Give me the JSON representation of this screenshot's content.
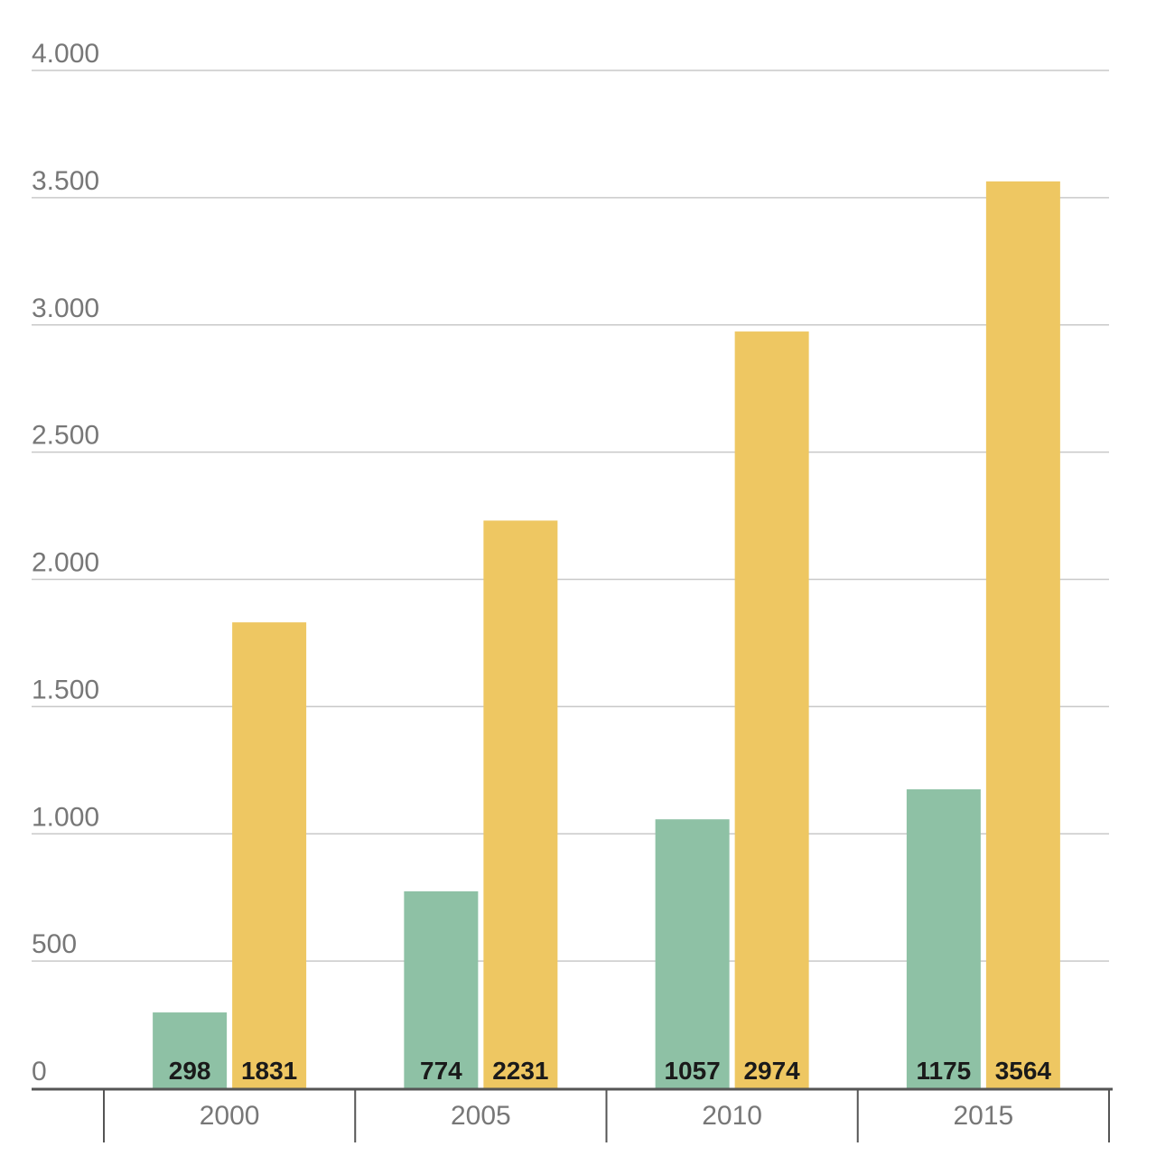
{
  "chart_data": {
    "type": "bar",
    "categories": [
      "2000",
      "2005",
      "2010",
      "2015"
    ],
    "series": [
      {
        "values": [
          298,
          774,
          1057,
          1175
        ],
        "color": "#8ec1a5"
      },
      {
        "values": [
          1831,
          2231,
          2974,
          3564
        ],
        "color": "#eec762"
      }
    ],
    "y_ticks": [
      {
        "value": 0,
        "label": "0"
      },
      {
        "value": 500,
        "label": "500"
      },
      {
        "value": 1000,
        "label": "1.000"
      },
      {
        "value": 1500,
        "label": "1.500"
      },
      {
        "value": 2000,
        "label": "2.000"
      },
      {
        "value": 2500,
        "label": "2.500"
      },
      {
        "value": 3000,
        "label": "3.000"
      },
      {
        "value": 3500,
        "label": "3.500"
      },
      {
        "value": 4000,
        "label": "4.000"
      }
    ],
    "ylim": [
      0,
      4000
    ],
    "grid": true,
    "data_labels": "inside-bottom",
    "title": "",
    "xlabel": "",
    "ylabel": ""
  }
}
